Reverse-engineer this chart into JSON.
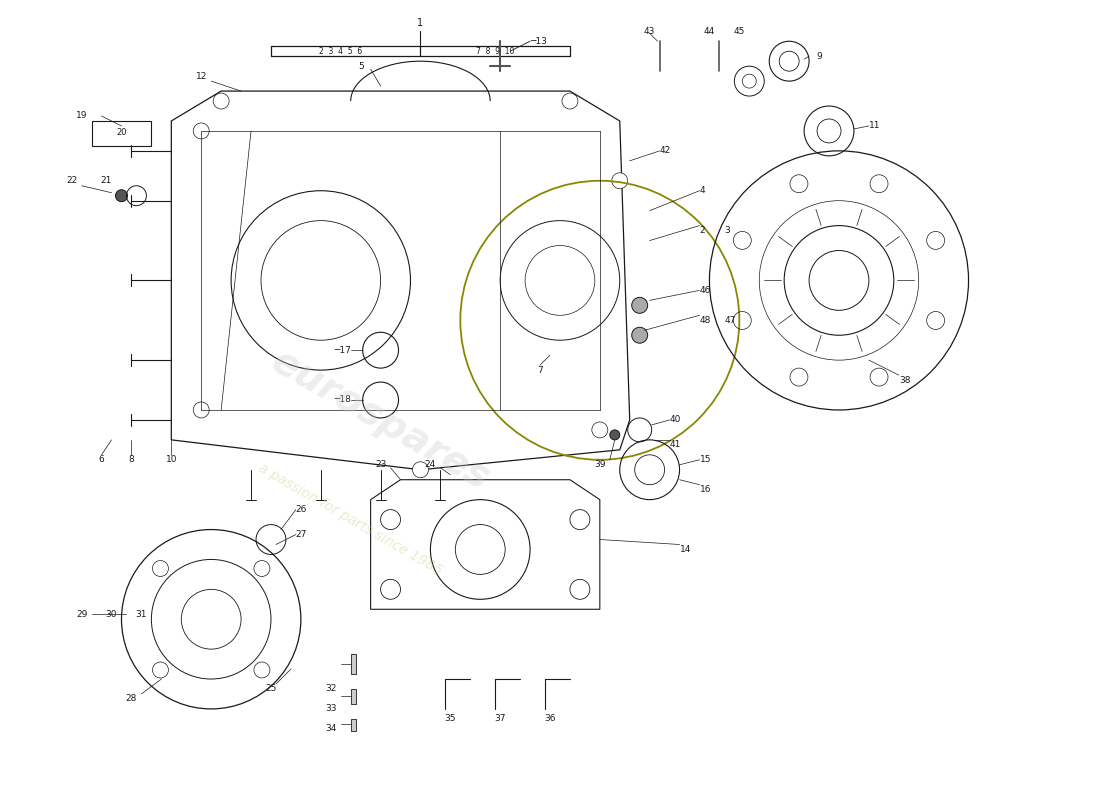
{
  "bg": "#ffffff",
  "wm1": "eurospares",
  "wm2": "a passion for parts since 1985",
  "fw": 11.0,
  "fh": 8.0,
  "dpi": 100,
  "lc": "#1a1a1a",
  "tc": "#1a1a1a"
}
